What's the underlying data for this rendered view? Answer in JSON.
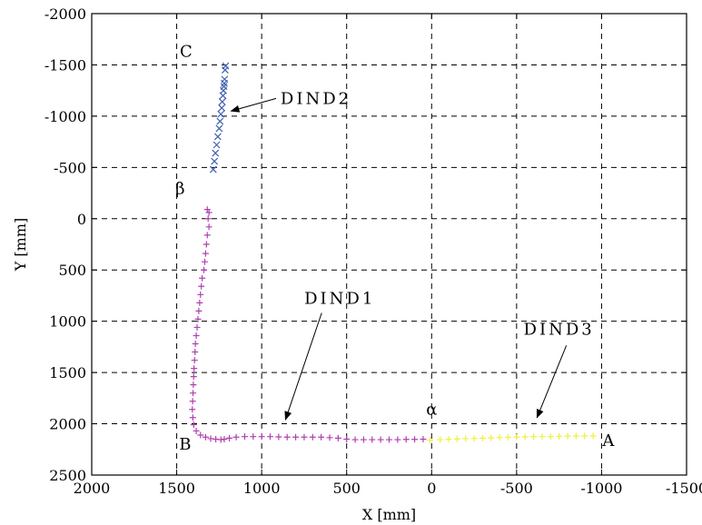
{
  "chart_data": {
    "type": "scatter",
    "title": "",
    "xlabel": "X [mm]",
    "ylabel": "Y [mm]",
    "xlim": [
      2000,
      -1500
    ],
    "ylim": [
      -2000,
      2500
    ],
    "x_reversed": true,
    "y_reversed": true,
    "grid": true,
    "xticks": [
      "2000",
      "1500",
      "1000",
      "500",
      "0",
      "-500",
      "-1000",
      "-1500"
    ],
    "yticks": [
      "-2000",
      "-1500",
      "-1000",
      "-500",
      "0",
      "500",
      "1000",
      "1500",
      "2000",
      "2500"
    ],
    "series": [
      {
        "name": "DIND2",
        "marker": "x",
        "color": "#3f5fb0",
        "points": [
          [
            1285,
            -480
          ],
          [
            1278,
            -560
          ],
          [
            1272,
            -640
          ],
          [
            1265,
            -720
          ],
          [
            1258,
            -800
          ],
          [
            1250,
            -880
          ],
          [
            1245,
            -950
          ],
          [
            1240,
            -1020
          ],
          [
            1235,
            -1080
          ],
          [
            1232,
            -1140
          ],
          [
            1228,
            -1200
          ],
          [
            1225,
            -1250
          ],
          [
            1222,
            -1290
          ],
          [
            1220,
            -1320
          ],
          [
            1218,
            -1360
          ],
          [
            1215,
            -1450
          ],
          [
            1212,
            -1490
          ]
        ]
      },
      {
        "name": "DIND1",
        "marker": "+",
        "color": "#b040b0",
        "points": [
          [
            1320,
            -90
          ],
          [
            1310,
            -60
          ],
          [
            1315,
            0
          ],
          [
            1310,
            80
          ],
          [
            1320,
            160
          ],
          [
            1325,
            250
          ],
          [
            1330,
            340
          ],
          [
            1335,
            420
          ],
          [
            1340,
            500
          ],
          [
            1350,
            580
          ],
          [
            1355,
            660
          ],
          [
            1360,
            740
          ],
          [
            1365,
            820
          ],
          [
            1370,
            900
          ],
          [
            1375,
            980
          ],
          [
            1380,
            1060
          ],
          [
            1385,
            1140
          ],
          [
            1390,
            1220
          ],
          [
            1392,
            1300
          ],
          [
            1395,
            1380
          ],
          [
            1398,
            1460
          ],
          [
            1400,
            1540
          ],
          [
            1402,
            1620
          ],
          [
            1404,
            1700
          ],
          [
            1406,
            1780
          ],
          [
            1408,
            1860
          ],
          [
            1405,
            1940
          ],
          [
            1400,
            2010
          ],
          [
            1385,
            2070
          ],
          [
            1360,
            2110
          ],
          [
            1330,
            2130
          ],
          [
            1300,
            2145
          ],
          [
            1270,
            2150
          ],
          [
            1240,
            2155
          ],
          [
            1220,
            2150
          ],
          [
            1190,
            2140
          ],
          [
            1150,
            2130
          ],
          [
            1100,
            2125
          ],
          [
            1050,
            2125
          ],
          [
            1000,
            2125
          ],
          [
            950,
            2125
          ],
          [
            900,
            2128
          ],
          [
            850,
            2130
          ],
          [
            800,
            2130
          ],
          [
            750,
            2130
          ],
          [
            700,
            2130
          ],
          [
            650,
            2130
          ],
          [
            600,
            2135
          ],
          [
            550,
            2140
          ],
          [
            500,
            2150
          ],
          [
            450,
            2155
          ],
          [
            400,
            2155
          ],
          [
            350,
            2155
          ],
          [
            300,
            2155
          ],
          [
            250,
            2155
          ],
          [
            200,
            2155
          ],
          [
            150,
            2152
          ],
          [
            100,
            2152
          ],
          [
            50,
            2150
          ]
        ]
      },
      {
        "name": "DIND3",
        "marker": "+",
        "color": "#f0f040",
        "points": [
          [
            10,
            2160
          ],
          [
            -50,
            2155
          ],
          [
            -100,
            2150
          ],
          [
            -150,
            2148
          ],
          [
            -200,
            2145
          ],
          [
            -250,
            2143
          ],
          [
            -300,
            2140
          ],
          [
            -350,
            2138
          ],
          [
            -400,
            2135
          ],
          [
            -450,
            2132
          ],
          [
            -500,
            2130
          ],
          [
            -550,
            2128
          ],
          [
            -600,
            2125
          ],
          [
            -650,
            2125
          ],
          [
            -700,
            2125
          ],
          [
            -750,
            2122
          ],
          [
            -800,
            2120
          ],
          [
            -850,
            2120
          ],
          [
            -900,
            2118
          ],
          [
            -950,
            2118
          ]
        ]
      }
    ],
    "annotations": [
      {
        "text": "C",
        "x": 1445,
        "y": -1580
      },
      {
        "text": "β",
        "x": 1480,
        "y": -240
      },
      {
        "text": "B",
        "x": 1450,
        "y": 2250
      },
      {
        "text": "α",
        "x": 0,
        "y": 1910
      },
      {
        "text": "A",
        "x": -1040,
        "y": 2215
      },
      {
        "text": "DIND2",
        "x": 680,
        "y": -1120,
        "arrow_to": [
          1180,
          -1050
        ]
      },
      {
        "text": "DIND1",
        "x": 540,
        "y": 830,
        "arrow_to": [
          860,
          1960
        ]
      },
      {
        "text": "DIND3",
        "x": -750,
        "y": 1130,
        "arrow_to": [
          -620,
          1940
        ]
      }
    ]
  }
}
